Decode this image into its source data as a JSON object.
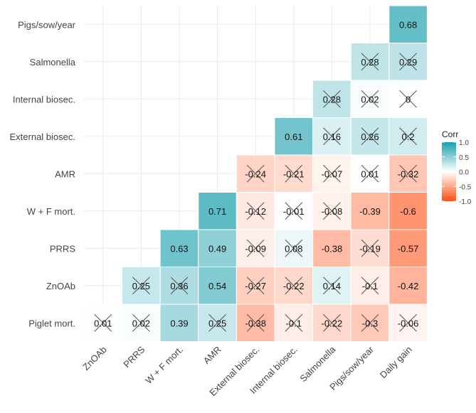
{
  "chart_data": {
    "type": "heatmap",
    "title": "",
    "x_labels": [
      "ZnOAb",
      "PRRS",
      "W + F mort.",
      "AMR",
      "External biosec.",
      "Internal biosec.",
      "Salmonella",
      "Pigs/sow/year",
      "Daily gain"
    ],
    "y_labels": [
      "Pigs/sow/year",
      "Salmonella",
      "Internal biosec.",
      "External biosec.",
      "AMR",
      "W + F mort.",
      "PRRS",
      "ZnOAb",
      "Piglet mort."
    ],
    "cells": [
      {
        "row": 0,
        "col": 8,
        "value": 0.68,
        "label": "0.68",
        "crossed": false
      },
      {
        "row": 1,
        "col": 7,
        "value": 0.28,
        "label": "0.28",
        "crossed": true
      },
      {
        "row": 1,
        "col": 8,
        "value": 0.29,
        "label": "0.29",
        "crossed": true
      },
      {
        "row": 2,
        "col": 6,
        "value": 0.28,
        "label": "0.28",
        "crossed": true
      },
      {
        "row": 2,
        "col": 7,
        "value": 0.02,
        "label": "0.02",
        "crossed": true
      },
      {
        "row": 2,
        "col": 8,
        "value": 0,
        "label": "0",
        "crossed": true
      },
      {
        "row": 3,
        "col": 5,
        "value": 0.61,
        "label": "0.61",
        "crossed": false
      },
      {
        "row": 3,
        "col": 6,
        "value": 0.16,
        "label": "0.16",
        "crossed": true
      },
      {
        "row": 3,
        "col": 7,
        "value": 0.26,
        "label": "0.26",
        "crossed": true
      },
      {
        "row": 3,
        "col": 8,
        "value": 0.2,
        "label": "0.2",
        "crossed": true
      },
      {
        "row": 4,
        "col": 4,
        "value": -0.24,
        "label": "-0.24",
        "crossed": true
      },
      {
        "row": 4,
        "col": 5,
        "value": -0.21,
        "label": "-0.21",
        "crossed": true
      },
      {
        "row": 4,
        "col": 6,
        "value": -0.07,
        "label": "-0.07",
        "crossed": true
      },
      {
        "row": 4,
        "col": 7,
        "value": 0.01,
        "label": "0.01",
        "crossed": true
      },
      {
        "row": 4,
        "col": 8,
        "value": -0.32,
        "label": "-0.32",
        "crossed": true
      },
      {
        "row": 5,
        "col": 3,
        "value": 0.71,
        "label": "0.71",
        "crossed": false
      },
      {
        "row": 5,
        "col": 4,
        "value": -0.12,
        "label": "-0.12",
        "crossed": true
      },
      {
        "row": 5,
        "col": 5,
        "value": -0.01,
        "label": "-0.01",
        "crossed": true
      },
      {
        "row": 5,
        "col": 6,
        "value": -0.08,
        "label": "-0.08",
        "crossed": true
      },
      {
        "row": 5,
        "col": 7,
        "value": -0.39,
        "label": "-0.39",
        "crossed": false
      },
      {
        "row": 5,
        "col": 8,
        "value": -0.6,
        "label": "-0.6",
        "crossed": false
      },
      {
        "row": 6,
        "col": 2,
        "value": 0.63,
        "label": "0.63",
        "crossed": false
      },
      {
        "row": 6,
        "col": 3,
        "value": 0.49,
        "label": "0.49",
        "crossed": false
      },
      {
        "row": 6,
        "col": 4,
        "value": -0.09,
        "label": "-0.09",
        "crossed": true
      },
      {
        "row": 6,
        "col": 5,
        "value": 0.08,
        "label": "0.08",
        "crossed": true
      },
      {
        "row": 6,
        "col": 6,
        "value": -0.38,
        "label": "-0.38",
        "crossed": false
      },
      {
        "row": 6,
        "col": 7,
        "value": -0.19,
        "label": "-0.19",
        "crossed": true
      },
      {
        "row": 6,
        "col": 8,
        "value": -0.57,
        "label": "-0.57",
        "crossed": false
      },
      {
        "row": 7,
        "col": 1,
        "value": 0.25,
        "label": "0.25",
        "crossed": true
      },
      {
        "row": 7,
        "col": 2,
        "value": 0.36,
        "label": "0.36",
        "crossed": true
      },
      {
        "row": 7,
        "col": 3,
        "value": 0.54,
        "label": "0.54",
        "crossed": false
      },
      {
        "row": 7,
        "col": 4,
        "value": -0.27,
        "label": "-0.27",
        "crossed": true
      },
      {
        "row": 7,
        "col": 5,
        "value": -0.22,
        "label": "-0.22",
        "crossed": true
      },
      {
        "row": 7,
        "col": 6,
        "value": 0.14,
        "label": "0.14",
        "crossed": true
      },
      {
        "row": 7,
        "col": 7,
        "value": -0.1,
        "label": "-0.1",
        "crossed": true
      },
      {
        "row": 7,
        "col": 8,
        "value": -0.42,
        "label": "-0.42",
        "crossed": false
      },
      {
        "row": 8,
        "col": 0,
        "value": 0.01,
        "label": "0.01",
        "crossed": true
      },
      {
        "row": 8,
        "col": 1,
        "value": 0.02,
        "label": "0.02",
        "crossed": true
      },
      {
        "row": 8,
        "col": 2,
        "value": 0.39,
        "label": "0.39",
        "crossed": false
      },
      {
        "row": 8,
        "col": 3,
        "value": 0.25,
        "label": "0.25",
        "crossed": true
      },
      {
        "row": 8,
        "col": 4,
        "value": -0.38,
        "label": "-0.38",
        "crossed": true
      },
      {
        "row": 8,
        "col": 5,
        "value": -0.1,
        "label": "-0.1",
        "crossed": true
      },
      {
        "row": 8,
        "col": 6,
        "value": -0.22,
        "label": "-0.22",
        "crossed": true
      },
      {
        "row": 8,
        "col": 7,
        "value": -0.3,
        "label": "-0.3",
        "crossed": true
      },
      {
        "row": 8,
        "col": 8,
        "value": -0.06,
        "label": "-0.06",
        "crossed": true
      }
    ],
    "legend": {
      "title": "Corr",
      "range": [
        -1.0,
        1.0
      ],
      "ticks": [
        1.0,
        0.5,
        0.0,
        -0.5,
        -1.0
      ],
      "tick_labels": [
        "1.0",
        "0.5",
        "0.0",
        "-0.5",
        "-1.0"
      ],
      "placement": "right"
    },
    "colors": {
      "high": "#1a9fae",
      "mid": "#ffffff",
      "low": "#ff4d12",
      "grid": "#ebebeb",
      "cross": "#555555"
    }
  }
}
